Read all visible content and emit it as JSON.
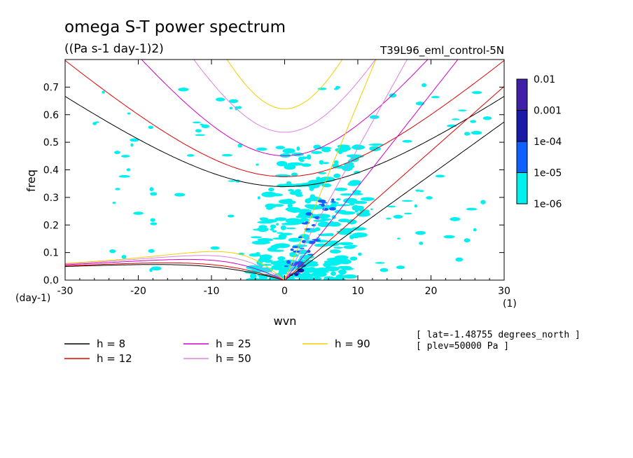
{
  "chart_data": {
    "type": "heatmap",
    "title": "omega S-T power spectrum",
    "subtitle": "((Pa s-1 day-1)2)",
    "run_label": "T39L96_eml_control-5N",
    "xlabel": "wvn",
    "ylabel": "freq",
    "x_unit_label": "(1)",
    "y_unit_label": "(day-1)",
    "xlim": [
      -30,
      30
    ],
    "ylim": [
      0,
      0.8
    ],
    "x_ticks": [
      "-30",
      "-20",
      "-10",
      "0",
      "10",
      "20",
      "30"
    ],
    "x_tick_values": [
      -30,
      -20,
      -10,
      0,
      10,
      20,
      30
    ],
    "y_ticks": [
      "0.0",
      "0.1",
      "0.2",
      "0.3",
      "0.4",
      "0.5",
      "0.6",
      "0.7"
    ],
    "y_tick_values": [
      0,
      0.1,
      0.2,
      0.3,
      0.4,
      0.5,
      0.6,
      0.7
    ],
    "colorbar": {
      "labels": [
        "0.01",
        "0.001",
        "1e-04",
        "1e-05",
        "1e-06"
      ],
      "colors": [
        "#4020a8",
        "#1a1aa8",
        "#1060ff",
        "#00f0f0"
      ]
    },
    "series": [
      {
        "name": "h =  8",
        "h": 8,
        "color": "#000000"
      },
      {
        "name": "h = 12",
        "h": 12,
        "color": "#e00000"
      },
      {
        "name": "h = 25",
        "h": 25,
        "color": "#d000c0"
      },
      {
        "name": "h = 50",
        "h": 50,
        "color": "#e080e0"
      },
      {
        "name": "h = 90",
        "h": 90,
        "color": "#f0d000"
      }
    ],
    "annotations": [
      "[ lat=-1.48755 degrees_north ]",
      "[ plev=50000 Pa ]"
    ]
  }
}
